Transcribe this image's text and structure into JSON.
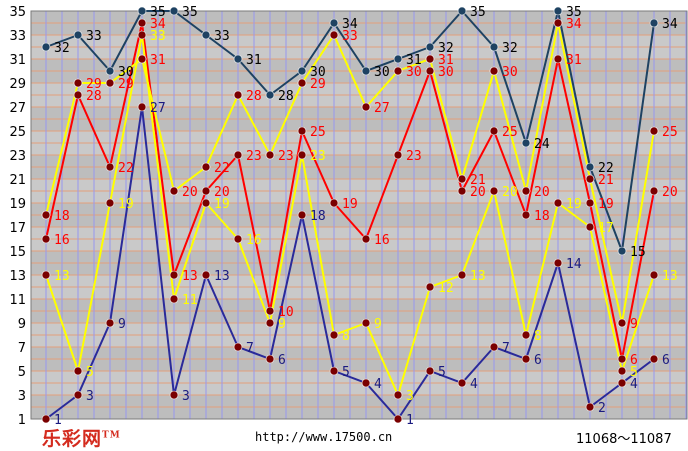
{
  "footer": {
    "logo": "乐彩网",
    "trademark": "TM",
    "url": "http://www.17500.cn",
    "issue_range": "11068～11087"
  },
  "colors": {
    "background_band_dark": "#bdbdbd",
    "background_band_light": "#c9c9c9",
    "row_line": "#e2a07a",
    "col_line": "#9898ee",
    "series_top": "#1e4262",
    "series_red": "#ff0000",
    "series_yellow": "#ffff00",
    "series_bottom": "#2a2a9a",
    "marker": "#7a0000"
  },
  "chart_data": {
    "type": "line",
    "title": "",
    "xlabel": "",
    "ylabel": "",
    "x": [
      1,
      2,
      3,
      4,
      5,
      6,
      7,
      8,
      9,
      10,
      11,
      12,
      13,
      14,
      15,
      16,
      17,
      18,
      19,
      20
    ],
    "ylim": [
      1,
      35
    ],
    "yticks": [
      1,
      3,
      5,
      7,
      9,
      11,
      13,
      15,
      17,
      19,
      21,
      23,
      25,
      27,
      29,
      31,
      33,
      35
    ],
    "grid": true,
    "legend": "none",
    "series": [
      {
        "color": "#1e4262",
        "label_color": "#000000",
        "values": [
          32,
          33,
          30,
          35,
          35,
          33,
          31,
          28,
          30,
          34,
          30,
          31,
          32,
          35,
          32,
          24,
          35,
          22,
          15,
          34
        ]
      },
      {
        "color": "#ff0000",
        "label_color": "#ff0000",
        "values": [
          16,
          28,
          22,
          34,
          13,
          20,
          23,
          10,
          25,
          19,
          16,
          23,
          30,
          20,
          25,
          18,
          31,
          19,
          6,
          20
        ]
      },
      {
        "color": "#ffff00",
        "label_color": "#ffff00",
        "values": [
          13,
          5,
          19,
          33,
          11,
          19,
          16,
          9,
          23,
          8,
          9,
          3,
          12,
          13,
          20,
          8,
          19,
          17,
          5,
          13
        ]
      },
      {
        "color": "#ff0000",
        "label_color": "#ff0000",
        "values": [
          18,
          29,
          29,
          31,
          20,
          22,
          28,
          23,
          29,
          33,
          27,
          30,
          31,
          21,
          30,
          20,
          34,
          21,
          9,
          25
        ]
      },
      {
        "color": "#ffff00",
        "label_color": "#ffff00",
        "values": [
          18,
          29,
          29,
          31,
          20,
          22,
          28,
          23,
          29,
          33,
          27,
          30,
          31,
          21,
          30,
          20,
          34,
          21,
          9,
          25
        ]
      },
      {
        "color": "#2a2a9a",
        "label_color": "#1a1a80",
        "values": [
          1,
          3,
          9,
          27,
          3,
          13,
          7,
          6,
          18,
          5,
          4,
          1,
          5,
          4,
          7,
          6,
          14,
          2,
          4,
          6
        ]
      }
    ]
  }
}
